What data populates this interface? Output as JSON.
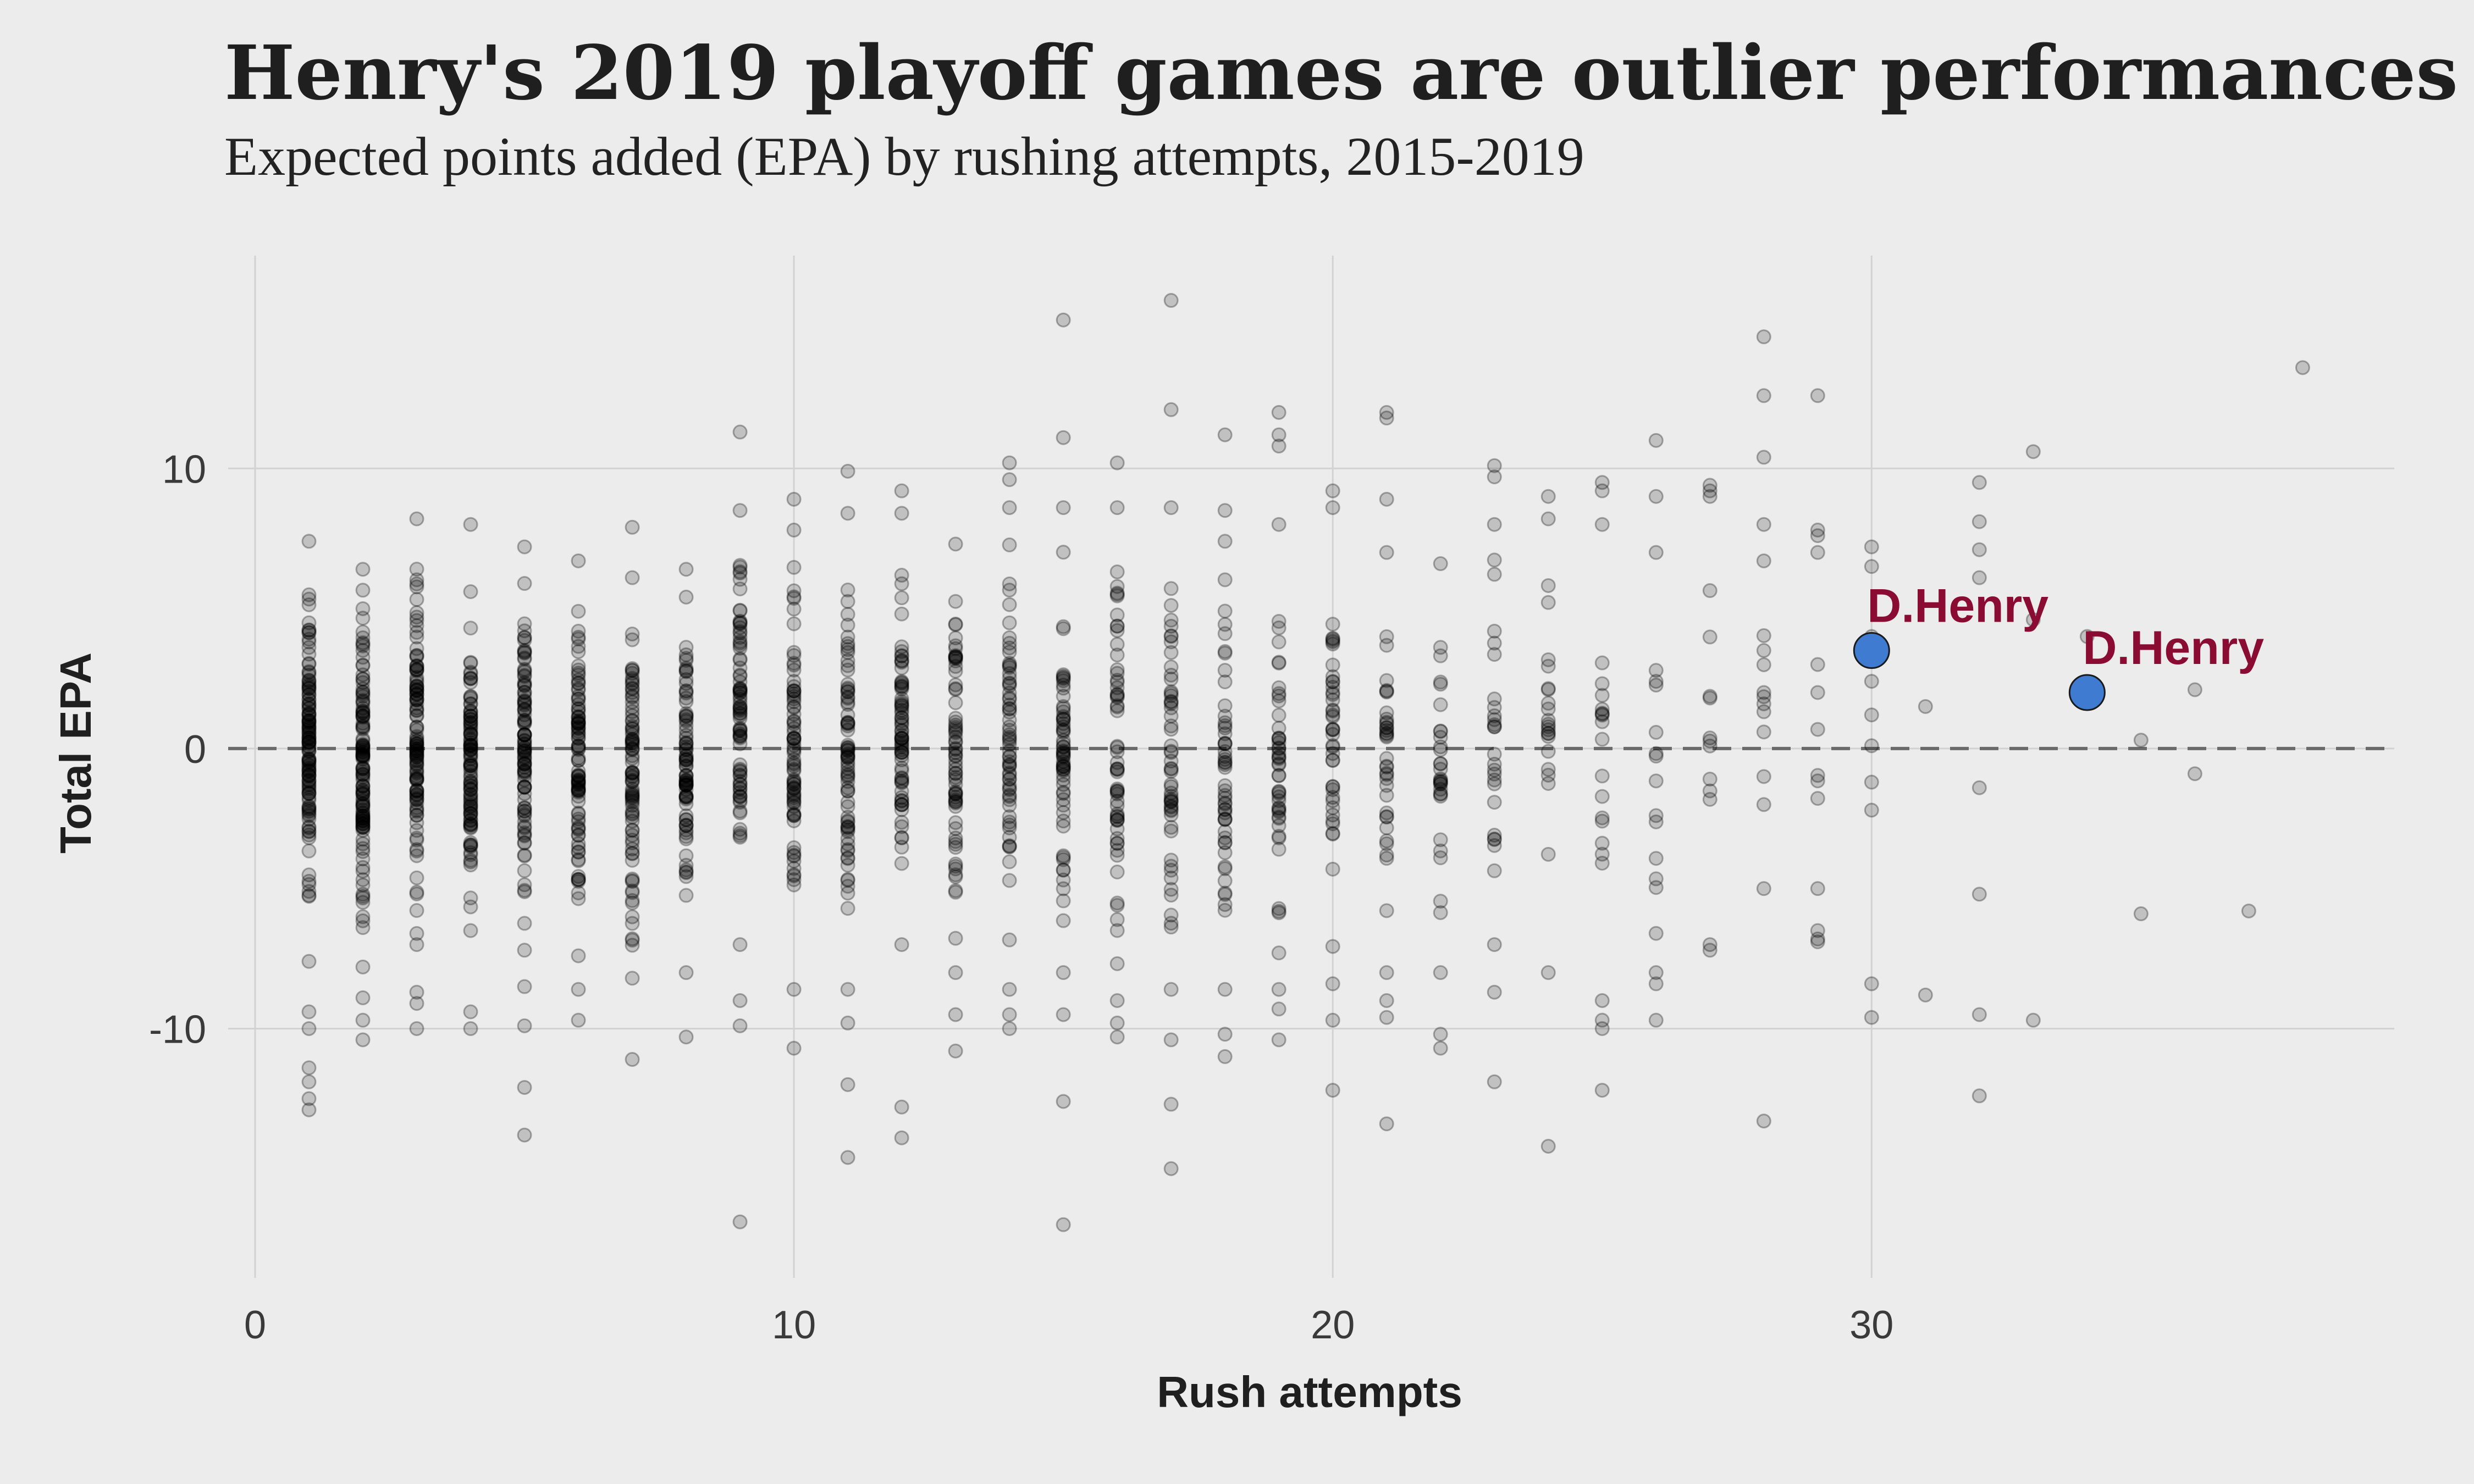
{
  "chart_data": {
    "type": "scatter",
    "title": "Henry's 2019 playoff games are outlier performances",
    "subtitle": "Expected points added (EPA) by rushing attempts, 2015-2019",
    "xlabel": "Rush attempts",
    "ylabel": "Total EPA",
    "xlim": [
      -0.5,
      39.7
    ],
    "ylim": [
      -18.9,
      17.6
    ],
    "x_ticks": [
      0,
      10,
      20,
      30
    ],
    "y_ticks": [
      -10,
      0,
      10
    ],
    "grid": true,
    "reference_line": {
      "y": 0,
      "style": "dashed"
    },
    "background_points": {
      "color": "#000000",
      "opacity": 0.18,
      "dense_ranges": [
        {
          "x": 1,
          "ymin": -7.6,
          "ymax": 7.4,
          "count": 120
        },
        {
          "x": 2,
          "ymin": -7.8,
          "ymax": 6.4,
          "count": 120
        },
        {
          "x": 3,
          "ymin": -7.0,
          "ymax": 8.2,
          "count": 110
        },
        {
          "x": 4,
          "ymin": -6.5,
          "ymax": 5.6,
          "count": 100
        },
        {
          "x": 5,
          "ymin": -7.2,
          "ymax": 7.2,
          "count": 95
        },
        {
          "x": 6,
          "ymin": -7.4,
          "ymax": 6.7,
          "count": 90
        },
        {
          "x": 7,
          "ymin": -8.2,
          "ymax": 6.1,
          "count": 85
        },
        {
          "x": 8,
          "ymin": -8.0,
          "ymax": 6.4,
          "count": 80
        },
        {
          "x": 9,
          "ymin": -7.0,
          "ymax": 8.5,
          "count": 78
        },
        {
          "x": 10,
          "ymin": -8.6,
          "ymax": 7.8,
          "count": 74
        },
        {
          "x": 11,
          "ymin": -8.6,
          "ymax": 8.4,
          "count": 72
        },
        {
          "x": 12,
          "ymin": -7.0,
          "ymax": 8.4,
          "count": 70
        },
        {
          "x": 13,
          "ymin": -8.0,
          "ymax": 7.3,
          "count": 66
        },
        {
          "x": 14,
          "ymin": -8.6,
          "ymax": 8.6,
          "count": 62
        },
        {
          "x": 15,
          "ymin": -8.0,
          "ymax": 8.6,
          "count": 60
        },
        {
          "x": 16,
          "ymin": -9.0,
          "ymax": 8.6,
          "count": 56
        },
        {
          "x": 17,
          "ymin": -8.6,
          "ymax": 8.6,
          "count": 52
        },
        {
          "x": 18,
          "ymin": -8.6,
          "ymax": 7.4,
          "count": 48
        },
        {
          "x": 19,
          "ymin": -8.6,
          "ymax": 8.0,
          "count": 44
        },
        {
          "x": 20,
          "ymin": -8.4,
          "ymax": 8.6,
          "count": 40
        },
        {
          "x": 21,
          "ymin": -8.0,
          "ymax": 7.0,
          "count": 34
        },
        {
          "x": 22,
          "ymin": -8.0,
          "ymax": 6.6,
          "count": 28
        },
        {
          "x": 23,
          "ymin": -7.0,
          "ymax": 8.0,
          "count": 24
        },
        {
          "x": 24,
          "ymin": -8.0,
          "ymax": 8.2,
          "count": 20
        },
        {
          "x": 25,
          "ymin": -9.0,
          "ymax": 8.0,
          "count": 16
        },
        {
          "x": 26,
          "ymin": -8.0,
          "ymax": 7.0,
          "count": 12
        },
        {
          "x": 27,
          "ymin": -7.0,
          "ymax": 9.0,
          "count": 10
        },
        {
          "x": 28,
          "ymin": -5.0,
          "ymax": 8.0,
          "count": 6
        },
        {
          "x": 29,
          "ymin": -6.8,
          "ymax": 7.6,
          "count": 4
        }
      ],
      "points": [
        [
          1,
          -12.9
        ],
        [
          1,
          -12.5
        ],
        [
          1,
          -11.9
        ],
        [
          1,
          -11.4
        ],
        [
          1,
          -10.0
        ],
        [
          1,
          -9.4
        ],
        [
          2,
          -10.4
        ],
        [
          2,
          -9.7
        ],
        [
          2,
          -8.9
        ],
        [
          3,
          -10.0
        ],
        [
          3,
          -9.1
        ],
        [
          3,
          -8.7
        ],
        [
          4,
          -10.0
        ],
        [
          4,
          -9.4
        ],
        [
          4,
          8.0
        ],
        [
          5,
          -13.8
        ],
        [
          5,
          -12.1
        ],
        [
          5,
          -9.9
        ],
        [
          5,
          -8.5
        ],
        [
          6,
          -9.7
        ],
        [
          6,
          -8.6
        ],
        [
          7,
          -11.1
        ],
        [
          7,
          7.9
        ],
        [
          8,
          -10.3
        ],
        [
          9,
          -16.9
        ],
        [
          9,
          -9.9
        ],
        [
          9,
          -9.0
        ],
        [
          9,
          11.3
        ],
        [
          10,
          -10.7
        ],
        [
          10,
          8.9
        ],
        [
          11,
          -14.6
        ],
        [
          11,
          -12.0
        ],
        [
          11,
          -9.8
        ],
        [
          11,
          9.9
        ],
        [
          12,
          -13.9
        ],
        [
          12,
          -12.8
        ],
        [
          12,
          9.2
        ],
        [
          13,
          -10.8
        ],
        [
          13,
          -9.5
        ],
        [
          14,
          -10.0
        ],
        [
          14,
          -9.5
        ],
        [
          14,
          10.2
        ],
        [
          14,
          9.6
        ],
        [
          15,
          -17.0
        ],
        [
          15,
          -12.6
        ],
        [
          15,
          -9.5
        ],
        [
          15,
          15.3
        ],
        [
          15,
          11.1
        ],
        [
          16,
          -10.3
        ],
        [
          16,
          -9.8
        ],
        [
          16,
          10.2
        ],
        [
          17,
          -15.0
        ],
        [
          17,
          -12.7
        ],
        [
          17,
          -10.4
        ],
        [
          17,
          16.0
        ],
        [
          17,
          12.1
        ],
        [
          18,
          -11.0
        ],
        [
          18,
          -10.2
        ],
        [
          18,
          11.2
        ],
        [
          18,
          8.5
        ],
        [
          19,
          -10.4
        ],
        [
          19,
          -9.3
        ],
        [
          19,
          12.0
        ],
        [
          19,
          11.2
        ],
        [
          19,
          10.8
        ],
        [
          20,
          -12.2
        ],
        [
          20,
          -9.7
        ],
        [
          20,
          9.2
        ],
        [
          21,
          -13.4
        ],
        [
          21,
          -9.6
        ],
        [
          21,
          -9.0
        ],
        [
          21,
          12.0
        ],
        [
          21,
          11.8
        ],
        [
          21,
          8.9
        ],
        [
          22,
          -10.7
        ],
        [
          22,
          -10.2
        ],
        [
          23,
          -11.9
        ],
        [
          23,
          -8.7
        ],
        [
          23,
          10.1
        ],
        [
          23,
          9.7
        ],
        [
          24,
          -14.2
        ],
        [
          24,
          9.0
        ],
        [
          25,
          -12.2
        ],
        [
          25,
          -10.0
        ],
        [
          25,
          -9.7
        ],
        [
          25,
          9.5
        ],
        [
          25,
          9.2
        ],
        [
          26,
          -9.7
        ],
        [
          26,
          -8.4
        ],
        [
          26,
          -6.6
        ],
        [
          26,
          11.0
        ],
        [
          26,
          9.0
        ],
        [
          27,
          -7.2
        ],
        [
          27,
          9.4
        ],
        [
          27,
          9.2
        ],
        [
          28,
          -13.3
        ],
        [
          28,
          14.7
        ],
        [
          28,
          12.6
        ],
        [
          28,
          10.4
        ],
        [
          28,
          6.7
        ],
        [
          28,
          3.5
        ],
        [
          28,
          2.0
        ],
        [
          28,
          -1.0
        ],
        [
          28,
          -2.0
        ],
        [
          29,
          12.6
        ],
        [
          29,
          7.8
        ],
        [
          29,
          7.0
        ],
        [
          29,
          3.0
        ],
        [
          29,
          2.0
        ],
        [
          29,
          -5.0
        ],
        [
          29,
          -6.5
        ],
        [
          29,
          -6.9
        ],
        [
          30,
          7.2
        ],
        [
          30,
          6.5
        ],
        [
          30,
          4.0
        ],
        [
          30,
          2.4
        ],
        [
          30,
          1.2
        ],
        [
          30,
          0.1
        ],
        [
          30,
          -1.2
        ],
        [
          30,
          -2.2
        ],
        [
          30,
          -8.4
        ],
        [
          30,
          -9.6
        ],
        [
          31,
          1.5
        ],
        [
          31,
          -8.8
        ],
        [
          32,
          9.5
        ],
        [
          32,
          8.1
        ],
        [
          32,
          7.1
        ],
        [
          32,
          6.1
        ],
        [
          32,
          -1.4
        ],
        [
          32,
          -5.2
        ],
        [
          32,
          -9.5
        ],
        [
          32,
          -12.4
        ],
        [
          33,
          10.6
        ],
        [
          33,
          4.6
        ],
        [
          33,
          -9.7
        ],
        [
          34,
          4.0
        ],
        [
          35,
          0.3
        ],
        [
          35,
          -5.9
        ],
        [
          36,
          2.1
        ],
        [
          36,
          -0.9
        ],
        [
          37,
          -5.8
        ],
        [
          38,
          13.6
        ]
      ]
    },
    "highlight_points": [
      {
        "label": "D.Henry",
        "x": 30,
        "y": 3.5,
        "color": "#3e7bd1"
      },
      {
        "label": "D.Henry",
        "x": 34,
        "y": 2.0,
        "color": "#3e7bd1"
      }
    ],
    "annotation_color": "#8b0c33",
    "grid_color": "#d2d2d2",
    "background_color": "#ececec"
  }
}
